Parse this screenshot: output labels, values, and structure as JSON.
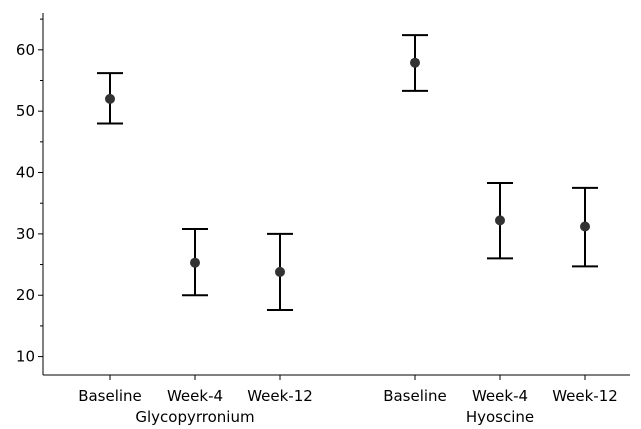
{
  "chart_data": {
    "type": "scatter",
    "subtype": "error-bar",
    "title": "",
    "xlabel": "",
    "ylabel": "",
    "ylim": [
      7,
      66
    ],
    "yticks": [
      10,
      20,
      30,
      40,
      50,
      60
    ],
    "grid": false,
    "legend": "none",
    "groups": [
      {
        "name": "Glycopyrronium",
        "points": [
          {
            "category": "Baseline",
            "mean": 52,
            "lower": 48,
            "upper": 56.2
          },
          {
            "category": "Week-4",
            "mean": 25.3,
            "lower": 20,
            "upper": 30.8
          },
          {
            "category": "Week-12",
            "mean": 23.8,
            "lower": 17.6,
            "upper": 30
          }
        ]
      },
      {
        "name": "Hyoscine",
        "points": [
          {
            "category": "Baseline",
            "mean": 57.9,
            "lower": 53.3,
            "upper": 62.4
          },
          {
            "category": "Week-4",
            "mean": 32.2,
            "lower": 26,
            "upper": 38.3
          },
          {
            "category": "Week-12",
            "mean": 31.2,
            "lower": 24.7,
            "upper": 37.5
          }
        ]
      }
    ],
    "colors": {
      "marker": "#333333",
      "errorbar": "#000000",
      "axis": "#000000"
    }
  }
}
